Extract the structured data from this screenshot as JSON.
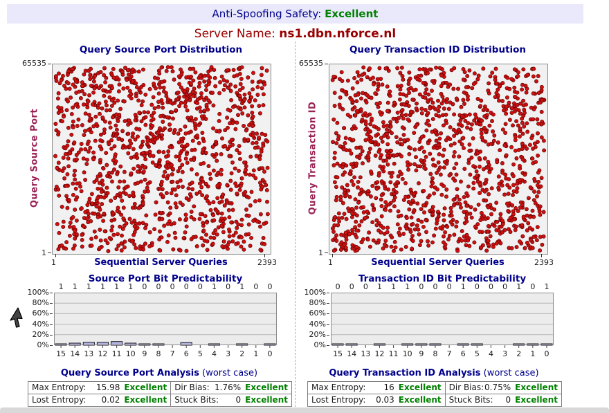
{
  "banner": {
    "label": "Anti-Spoofing Safety:",
    "value": "Excellent"
  },
  "server": {
    "label": "Server Name:",
    "value": "ns1.dbn.nforce.nl"
  },
  "colors": {
    "banner_bg": "#e9e9fb",
    "title_navy": "#00008b",
    "status_green": "#008000",
    "server_red": "#990000",
    "axis_maroon": "#992255",
    "dot_red": "#d01010",
    "bar_fill": "#b3b3e0"
  },
  "chart_data": [
    {
      "type": "scatter",
      "title": "Query Source Port Distribution",
      "ylabel": "Query Source Port",
      "xlabel": "Sequential Server Queries",
      "xlim": [
        1,
        2393
      ],
      "ylim": [
        1,
        65535
      ],
      "x_tick_labels": [
        "1",
        "2393"
      ],
      "y_tick_labels": [
        "65535",
        "1"
      ],
      "distribution": "uniform-random",
      "n_points": 1300,
      "seed": 1337,
      "dot_color": "#d01010",
      "dot_edge": "#600000"
    },
    {
      "type": "scatter",
      "title": "Query Transaction ID Distribution",
      "ylabel": "Query Transaction ID",
      "xlabel": "Sequential Server Queries",
      "xlim": [
        1,
        2393
      ],
      "ylim": [
        1,
        65535
      ],
      "x_tick_labels": [
        "1",
        "2393"
      ],
      "y_tick_labels": [
        "65535",
        "1"
      ],
      "distribution": "uniform-random",
      "n_points": 1300,
      "seed": 7331,
      "dot_color": "#d01010",
      "dot_edge": "#600000"
    },
    {
      "type": "bar",
      "title": "Source Port Bit Predictability",
      "categories": [
        "15",
        "14",
        "13",
        "12",
        "11",
        "10",
        "9",
        "8",
        "7",
        "6",
        "5",
        "4",
        "3",
        "2",
        "1",
        "0"
      ],
      "top_labels": [
        "1",
        "1",
        "1",
        "1",
        "1",
        "1",
        "0",
        "0",
        "0",
        "0",
        "0",
        "1",
        "0",
        "1",
        "0",
        "0"
      ],
      "values": [
        1,
        4,
        5.5,
        5.5,
        7,
        4,
        2.5,
        2.5,
        0,
        5,
        0,
        2.5,
        0,
        2.5,
        0,
        2.5
      ],
      "ylim": [
        0,
        100
      ],
      "y_ticks": [
        "100%",
        "80%",
        "60%",
        "40%",
        "20%",
        "0%"
      ],
      "grid": true,
      "bar_fill": "#b3b3e0",
      "bar_edge": "#16161d"
    },
    {
      "type": "bar",
      "title": "Transaction ID Bit Predictability",
      "categories": [
        "15",
        "14",
        "13",
        "12",
        "11",
        "10",
        "9",
        "8",
        "7",
        "6",
        "5",
        "4",
        "3",
        "2",
        "1",
        "0"
      ],
      "top_labels": [
        "0",
        "0",
        "0",
        "1",
        "1",
        "1",
        "0",
        "0",
        "0",
        "1",
        "0",
        "0",
        "0",
        "1",
        "0",
        "1"
      ],
      "values": [
        1.5,
        1.5,
        0,
        1.5,
        0,
        1.5,
        2.5,
        2.5,
        0,
        2.5,
        2.5,
        0,
        0,
        1.5,
        2.5,
        1.5
      ],
      "ylim": [
        0,
        100
      ],
      "y_ticks": [
        "100%",
        "80%",
        "60%",
        "40%",
        "20%",
        "0%"
      ],
      "grid": true,
      "bar_fill": "#b3b3e0",
      "bar_edge": "#16161d"
    }
  ],
  "analysis": [
    {
      "title": "Query Source Port Analysis",
      "subtitle": "(worst case)",
      "rows": [
        [
          {
            "label": "Max Entropy:",
            "value": "15.98",
            "status": "Excellent"
          },
          {
            "label": "Dir Bias:",
            "value": "1.76%",
            "status": "Excellent"
          }
        ],
        [
          {
            "label": "Lost Entropy:",
            "value": "0.02",
            "status": "Excellent"
          },
          {
            "label": "Stuck Bits:",
            "value": "0",
            "status": "Excellent"
          }
        ]
      ]
    },
    {
      "title": "Query Transaction ID Analysis",
      "subtitle": "(worst case)",
      "rows": [
        [
          {
            "label": "Max Entropy:",
            "value": "16",
            "status": "Excellent"
          },
          {
            "label": "Dir Bias:",
            "value": "0.75%",
            "status": "Excellent"
          }
        ],
        [
          {
            "label": "Lost Entropy:",
            "value": "0.03",
            "status": "Excellent"
          },
          {
            "label": "Stuck Bits:",
            "value": "0",
            "status": "Excellent"
          }
        ]
      ]
    }
  ]
}
